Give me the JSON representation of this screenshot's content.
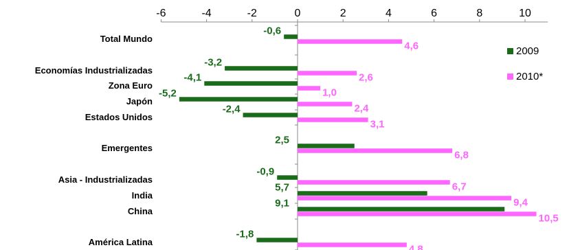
{
  "chart_data": {
    "type": "bar",
    "orientation": "horizontal",
    "categories": [
      "Total Mundo",
      "Economías Industrializadas",
      "Zona Euro",
      "Japón",
      "Estados Unidos",
      "Emergentes",
      "Asia - Industrializadas",
      "India",
      "China",
      "América Latina"
    ],
    "series": [
      {
        "name": "2009",
        "color": "#1a6b1a",
        "label_color": "#1a6b1a",
        "values": [
          -0.6,
          -3.2,
          -4.1,
          -5.2,
          -2.4,
          2.5,
          -0.9,
          5.7,
          9.1,
          -1.8
        ],
        "labels": [
          "-0,6",
          "-3,2",
          "-4,1",
          "-5,2",
          "-2,4",
          "2,5",
          "-0,9",
          "5,7",
          "9,1",
          "-1,8"
        ]
      },
      {
        "name": "2010*",
        "color": "#ff66ff",
        "label_color": "#ff66ff",
        "values": [
          4.6,
          2.6,
          1.0,
          2.4,
          3.1,
          6.8,
          6.7,
          9.4,
          10.5,
          4.8
        ],
        "labels": [
          "4,6",
          "2,6",
          "1,0",
          "2,4",
          "3,1",
          "6,8",
          "6,7",
          "9,4",
          "10,5",
          "4,8"
        ]
      }
    ],
    "xlim": [
      -6,
      11
    ],
    "xticks": [
      -6,
      -4,
      -2,
      0,
      2,
      4,
      6,
      8,
      10
    ],
    "xtick_labels": [
      "-6",
      "-4",
      "-2",
      "0",
      "2",
      "4",
      "6",
      "8",
      "10"
    ],
    "x_axis_position": "top",
    "legend_position": "right",
    "grid": false
  }
}
